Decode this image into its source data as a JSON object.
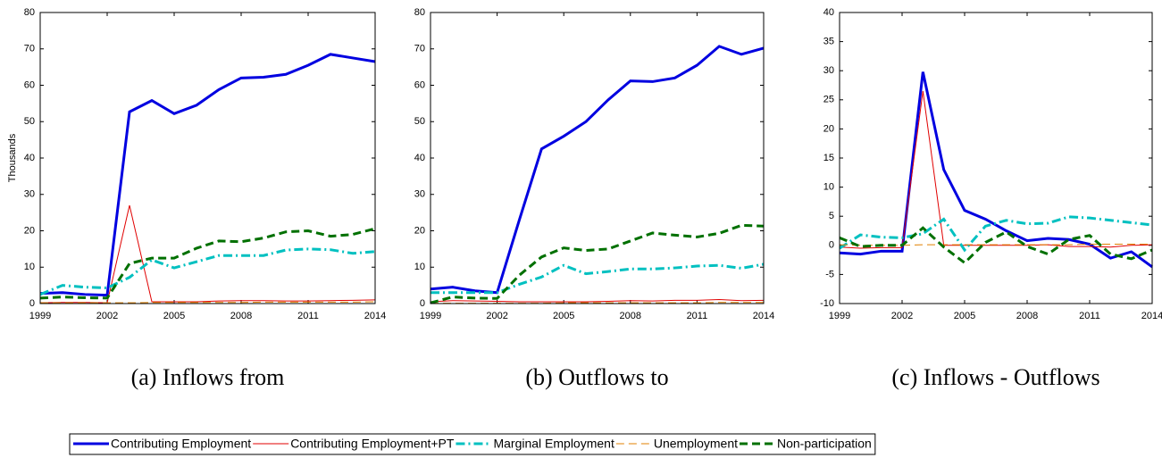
{
  "chart_data": [
    {
      "type": "line",
      "caption": "(a) Inflows from",
      "ylabel": "Thousands",
      "x": [
        1999,
        2000,
        2001,
        2002,
        2003,
        2004,
        2005,
        2006,
        2007,
        2008,
        2009,
        2010,
        2011,
        2012,
        2013,
        2014
      ],
      "xlim": [
        1999,
        2014
      ],
      "xticks": [
        1999,
        2002,
        2005,
        2008,
        2011,
        2014
      ],
      "ylim": [
        0,
        80
      ],
      "yticks": [
        0,
        10,
        20,
        30,
        40,
        50,
        60,
        70,
        80
      ],
      "legend": "bottom",
      "series": [
        {
          "name": "Contributing Employment",
          "color": "#0000e0",
          "width": 3,
          "dash": "solid",
          "values": [
            2.8,
            3,
            2.5,
            2.3,
            52.7,
            55.8,
            52.2,
            54.5,
            58.8,
            62,
            62.2,
            63,
            65.5,
            68.5,
            67.5,
            66.5
          ]
        },
        {
          "name": "Contributing Employment+PT",
          "color": "#e00000",
          "width": 1,
          "dash": "solid",
          "values": [
            0.2,
            0.3,
            0.3,
            0.2,
            27,
            0.5,
            0.5,
            0.5,
            0.7,
            0.8,
            0.8,
            0.7,
            0.7,
            0.8,
            0.9,
            1
          ]
        },
        {
          "name": "Marginal Employment",
          "color": "#00c0c0",
          "width": 3,
          "dash": "dashdot",
          "values": [
            2.5,
            5,
            4.5,
            4.3,
            7.2,
            12,
            9.8,
            11.5,
            13.2,
            13.2,
            13.2,
            14.7,
            15,
            14.8,
            13.8,
            14.3
          ]
        },
        {
          "name": "Unemployment",
          "color": "#e08000",
          "width": 1,
          "dash": "dash",
          "values": [
            0.2,
            0.2,
            0.2,
            0.2,
            0.2,
            0.3,
            0.3,
            0.3,
            0.3,
            0.3,
            0.4,
            0.4,
            0.4,
            0.4,
            0.4,
            0.5
          ]
        },
        {
          "name": "Non-participation",
          "color": "#007000",
          "width": 3,
          "dash": "dash",
          "values": [
            1.5,
            1.8,
            1.6,
            1.5,
            11,
            12.5,
            12.5,
            15.2,
            17.2,
            17,
            18,
            19.7,
            20,
            18.5,
            19,
            20.6
          ]
        }
      ]
    },
    {
      "type": "line",
      "caption": "(b) Outflows to",
      "x": [
        1999,
        2000,
        2001,
        2002,
        2003,
        2004,
        2005,
        2006,
        2007,
        2008,
        2009,
        2010,
        2011,
        2012,
        2013,
        2014
      ],
      "xlim": [
        1999,
        2014
      ],
      "xticks": [
        1999,
        2002,
        2005,
        2008,
        2011,
        2014
      ],
      "ylim": [
        0,
        80
      ],
      "yticks": [
        0,
        10,
        20,
        30,
        40,
        50,
        60,
        70,
        80
      ],
      "series": [
        {
          "name": "Contributing Employment",
          "color": "#0000e0",
          "width": 3,
          "dash": "solid",
          "values": [
            4,
            4.5,
            3.5,
            3,
            23,
            42.5,
            46,
            50,
            56,
            61.2,
            61,
            62,
            65.5,
            70.7,
            68.5,
            70.2
          ]
        },
        {
          "name": "Contributing Employment+PT",
          "color": "#e00000",
          "width": 1,
          "dash": "solid",
          "values": [
            0.5,
            0.8,
            0.7,
            0.6,
            0.5,
            0.5,
            0.5,
            0.5,
            0.6,
            0.8,
            0.7,
            0.9,
            0.9,
            1.1,
            0.8,
            0.9
          ]
        },
        {
          "name": "Marginal Employment",
          "color": "#00c0c0",
          "width": 3,
          "dash": "dashdot",
          "values": [
            3,
            3,
            3,
            3,
            5.3,
            7.3,
            10.5,
            8.2,
            8.8,
            9.5,
            9.5,
            9.8,
            10.3,
            10.5,
            9.7,
            10.8
          ]
        },
        {
          "name": "Unemployment",
          "color": "#e08000",
          "width": 1,
          "dash": "dash",
          "values": [
            0.1,
            0.1,
            0.1,
            0.1,
            0.1,
            0.1,
            0.2,
            0.2,
            0.2,
            0.2,
            0.2,
            0.2,
            0.2,
            0.3,
            0.3,
            0.3
          ]
        },
        {
          "name": "Non-participation",
          "color": "#007000",
          "width": 3,
          "dash": "dash",
          "values": [
            0.2,
            1.8,
            1.5,
            1.4,
            7.8,
            12.8,
            15.3,
            14.6,
            15,
            17.2,
            19.4,
            18.8,
            18.3,
            19.3,
            21.5,
            21.3
          ]
        }
      ]
    },
    {
      "type": "line",
      "caption": "(c) Inflows - Outflows",
      "x": [
        1999,
        2000,
        2001,
        2002,
        2003,
        2004,
        2005,
        2006,
        2007,
        2008,
        2009,
        2010,
        2011,
        2012,
        2013,
        2014
      ],
      "xlim": [
        1999,
        2014
      ],
      "xticks": [
        1999,
        2002,
        2005,
        2008,
        2011,
        2014
      ],
      "ylim": [
        -10,
        40
      ],
      "yticks": [
        -10,
        -5,
        0,
        5,
        10,
        15,
        20,
        25,
        30,
        35,
        40
      ],
      "series": [
        {
          "name": "Contributing Employment",
          "color": "#0000e0",
          "width": 3,
          "dash": "solid",
          "values": [
            -1.3,
            -1.5,
            -1,
            -1,
            29.8,
            13,
            6,
            4.5,
            2.5,
            0.8,
            1.2,
            1,
            0.2,
            -2.2,
            -1.1,
            -3.7
          ]
        },
        {
          "name": "Contributing Employment+PT",
          "color": "#e00000",
          "width": 1,
          "dash": "solid",
          "values": [
            -0.3,
            -0.5,
            -0.4,
            -0.4,
            26.5,
            0,
            0,
            0,
            0,
            0,
            0.1,
            -0.2,
            -0.2,
            -0.3,
            0,
            0.1
          ]
        },
        {
          "name": "Marginal Employment",
          "color": "#00c0c0",
          "width": 3,
          "dash": "dashdot",
          "values": [
            -0.5,
            1.8,
            1.4,
            1.3,
            2,
            4.5,
            -0.8,
            3.3,
            4.3,
            3.7,
            3.8,
            4.9,
            4.7,
            4.3,
            3.9,
            3.5
          ]
        },
        {
          "name": "Unemployment",
          "color": "#e08000",
          "width": 1,
          "dash": "dash",
          "values": [
            0.1,
            0,
            0,
            0,
            0.1,
            0.1,
            0.1,
            0.1,
            0.1,
            0.1,
            0.1,
            0.1,
            0.2,
            0.2,
            0.2,
            0.2
          ]
        },
        {
          "name": "Non-participation",
          "color": "#007000",
          "width": 3,
          "dash": "dash",
          "values": [
            1.3,
            -0.2,
            0,
            0,
            3,
            -0.3,
            -3,
            0.5,
            2.3,
            -0.2,
            -1.5,
            1,
            1.7,
            -1.5,
            -2.3,
            -0.8
          ]
        }
      ]
    }
  ]
}
